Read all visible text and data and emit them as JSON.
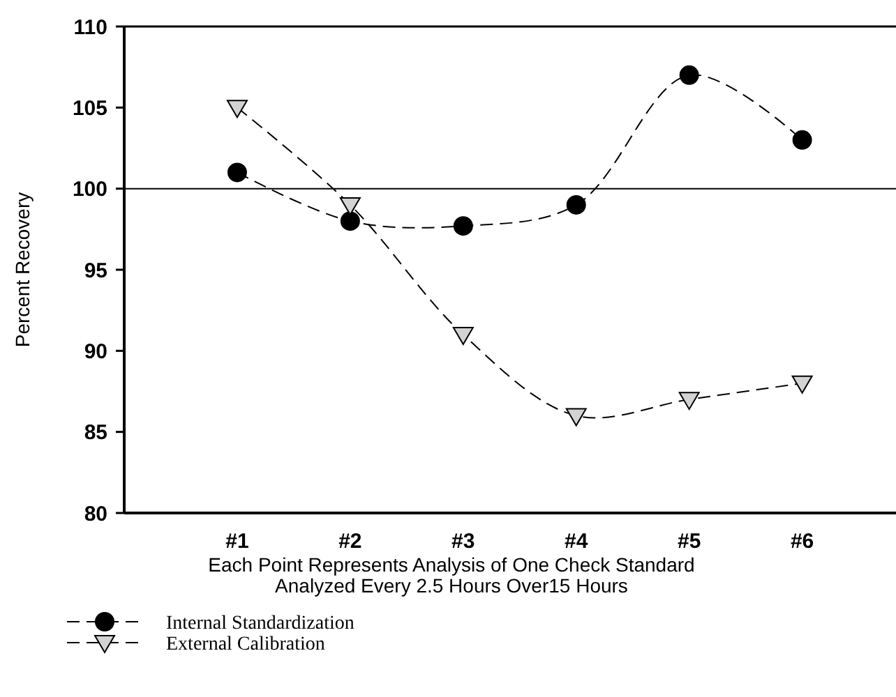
{
  "chart_data": {
    "type": "line",
    "ylabel": "Percent Recovery",
    "xlabel": "Each Point Represents Analysis of One Check Standard\nAnalyzed Every 2.5 Hours Over15 Hours",
    "categories": [
      "#1",
      "#2",
      "#3",
      "#4",
      "#5",
      "#6"
    ],
    "series": [
      {
        "name": "Internal Standardization",
        "color": "#000000",
        "marker": "circle",
        "values": [
          101,
          98,
          97.7,
          99,
          107,
          103
        ]
      },
      {
        "name": "External Calibration",
        "color": "#d3d3d3",
        "marker": "triangle",
        "values": [
          105,
          99,
          91,
          86,
          87,
          88
        ]
      }
    ],
    "ylim": [
      80,
      110
    ],
    "yticks": [
      80,
      85,
      90,
      95,
      100,
      105,
      110
    ],
    "ref_lines": [
      {
        "axis": "y",
        "value": 100
      }
    ],
    "line_style": "dashed",
    "grid": false,
    "legend": "bottom left"
  }
}
